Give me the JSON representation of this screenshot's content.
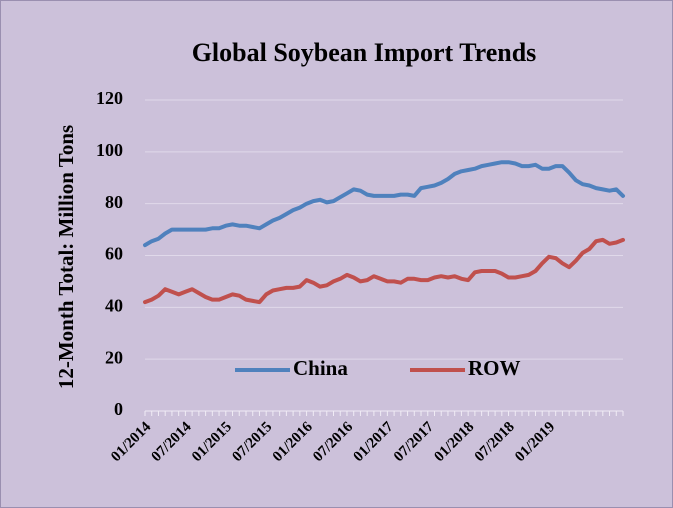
{
  "chart_data": {
    "type": "line",
    "title": "Global Soybean Import Trends",
    "y_label": "12-Month Total: Million Tons",
    "categories": [
      "01/2014",
      null,
      null,
      null,
      null,
      null,
      "07/2014",
      null,
      null,
      null,
      null,
      null,
      "01/2015",
      null,
      null,
      null,
      null,
      null,
      "07/2015",
      null,
      null,
      null,
      null,
      null,
      "01/2016",
      null,
      null,
      null,
      null,
      null,
      "07/2016",
      null,
      null,
      null,
      null,
      null,
      "01/2017",
      null,
      null,
      null,
      null,
      null,
      "07/2017",
      null,
      null,
      null,
      null,
      null,
      "01/2018",
      null,
      null,
      null,
      null,
      null,
      "07/2018",
      null,
      null,
      null,
      null,
      null,
      "01/2019",
      null,
      null,
      null,
      null,
      null,
      null,
      null,
      null,
      null,
      null,
      null
    ],
    "series": [
      {
        "name": "China",
        "color": "#4f81bd",
        "values": [
          64,
          65.5,
          66.5,
          68.5,
          70,
          70,
          70,
          70,
          70,
          70,
          70.5,
          70.5,
          71.5,
          72,
          71.5,
          71.5,
          71,
          70.5,
          72,
          73.5,
          74.5,
          76,
          77.5,
          78.5,
          80,
          81,
          81.5,
          80.5,
          81,
          82.5,
          84,
          85.5,
          85,
          83.5,
          83,
          83,
          83,
          83,
          83.5,
          83.5,
          83,
          86,
          86.5,
          87,
          88,
          89.5,
          91.5,
          92.5,
          93,
          93.5,
          94.5,
          95,
          95.5,
          96,
          96,
          95.5,
          94.5,
          94.5,
          95,
          93.5,
          93.5,
          94.5,
          94.5,
          92,
          89,
          87.5,
          87,
          86,
          85.5,
          85,
          85.5,
          83
        ]
      },
      {
        "name": "ROW",
        "color": "#c0504d",
        "values": [
          42,
          43,
          44.5,
          47,
          46,
          45,
          46,
          47,
          45.5,
          44,
          43,
          43,
          44,
          45,
          44.5,
          43,
          42.5,
          42,
          45,
          46.5,
          47,
          47.5,
          47.5,
          48,
          50.5,
          49.5,
          48,
          48.5,
          50,
          51,
          52.5,
          51.5,
          50,
          50.5,
          52,
          51,
          50,
          50,
          49.5,
          51,
          51,
          50.5,
          50.5,
          51.5,
          52,
          51.5,
          52,
          51,
          50.5,
          53.5,
          54,
          54,
          54,
          53,
          51.5,
          51.5,
          52,
          52.5,
          54,
          57,
          59.5,
          59,
          57,
          55.5,
          58,
          61,
          62.5,
          65.5,
          66,
          64.5,
          65,
          66
        ]
      }
    ],
    "ylim": [
      0,
      120
    ],
    "yticks": [
      0,
      20,
      40,
      60,
      80,
      100,
      120
    ],
    "grid": true
  }
}
